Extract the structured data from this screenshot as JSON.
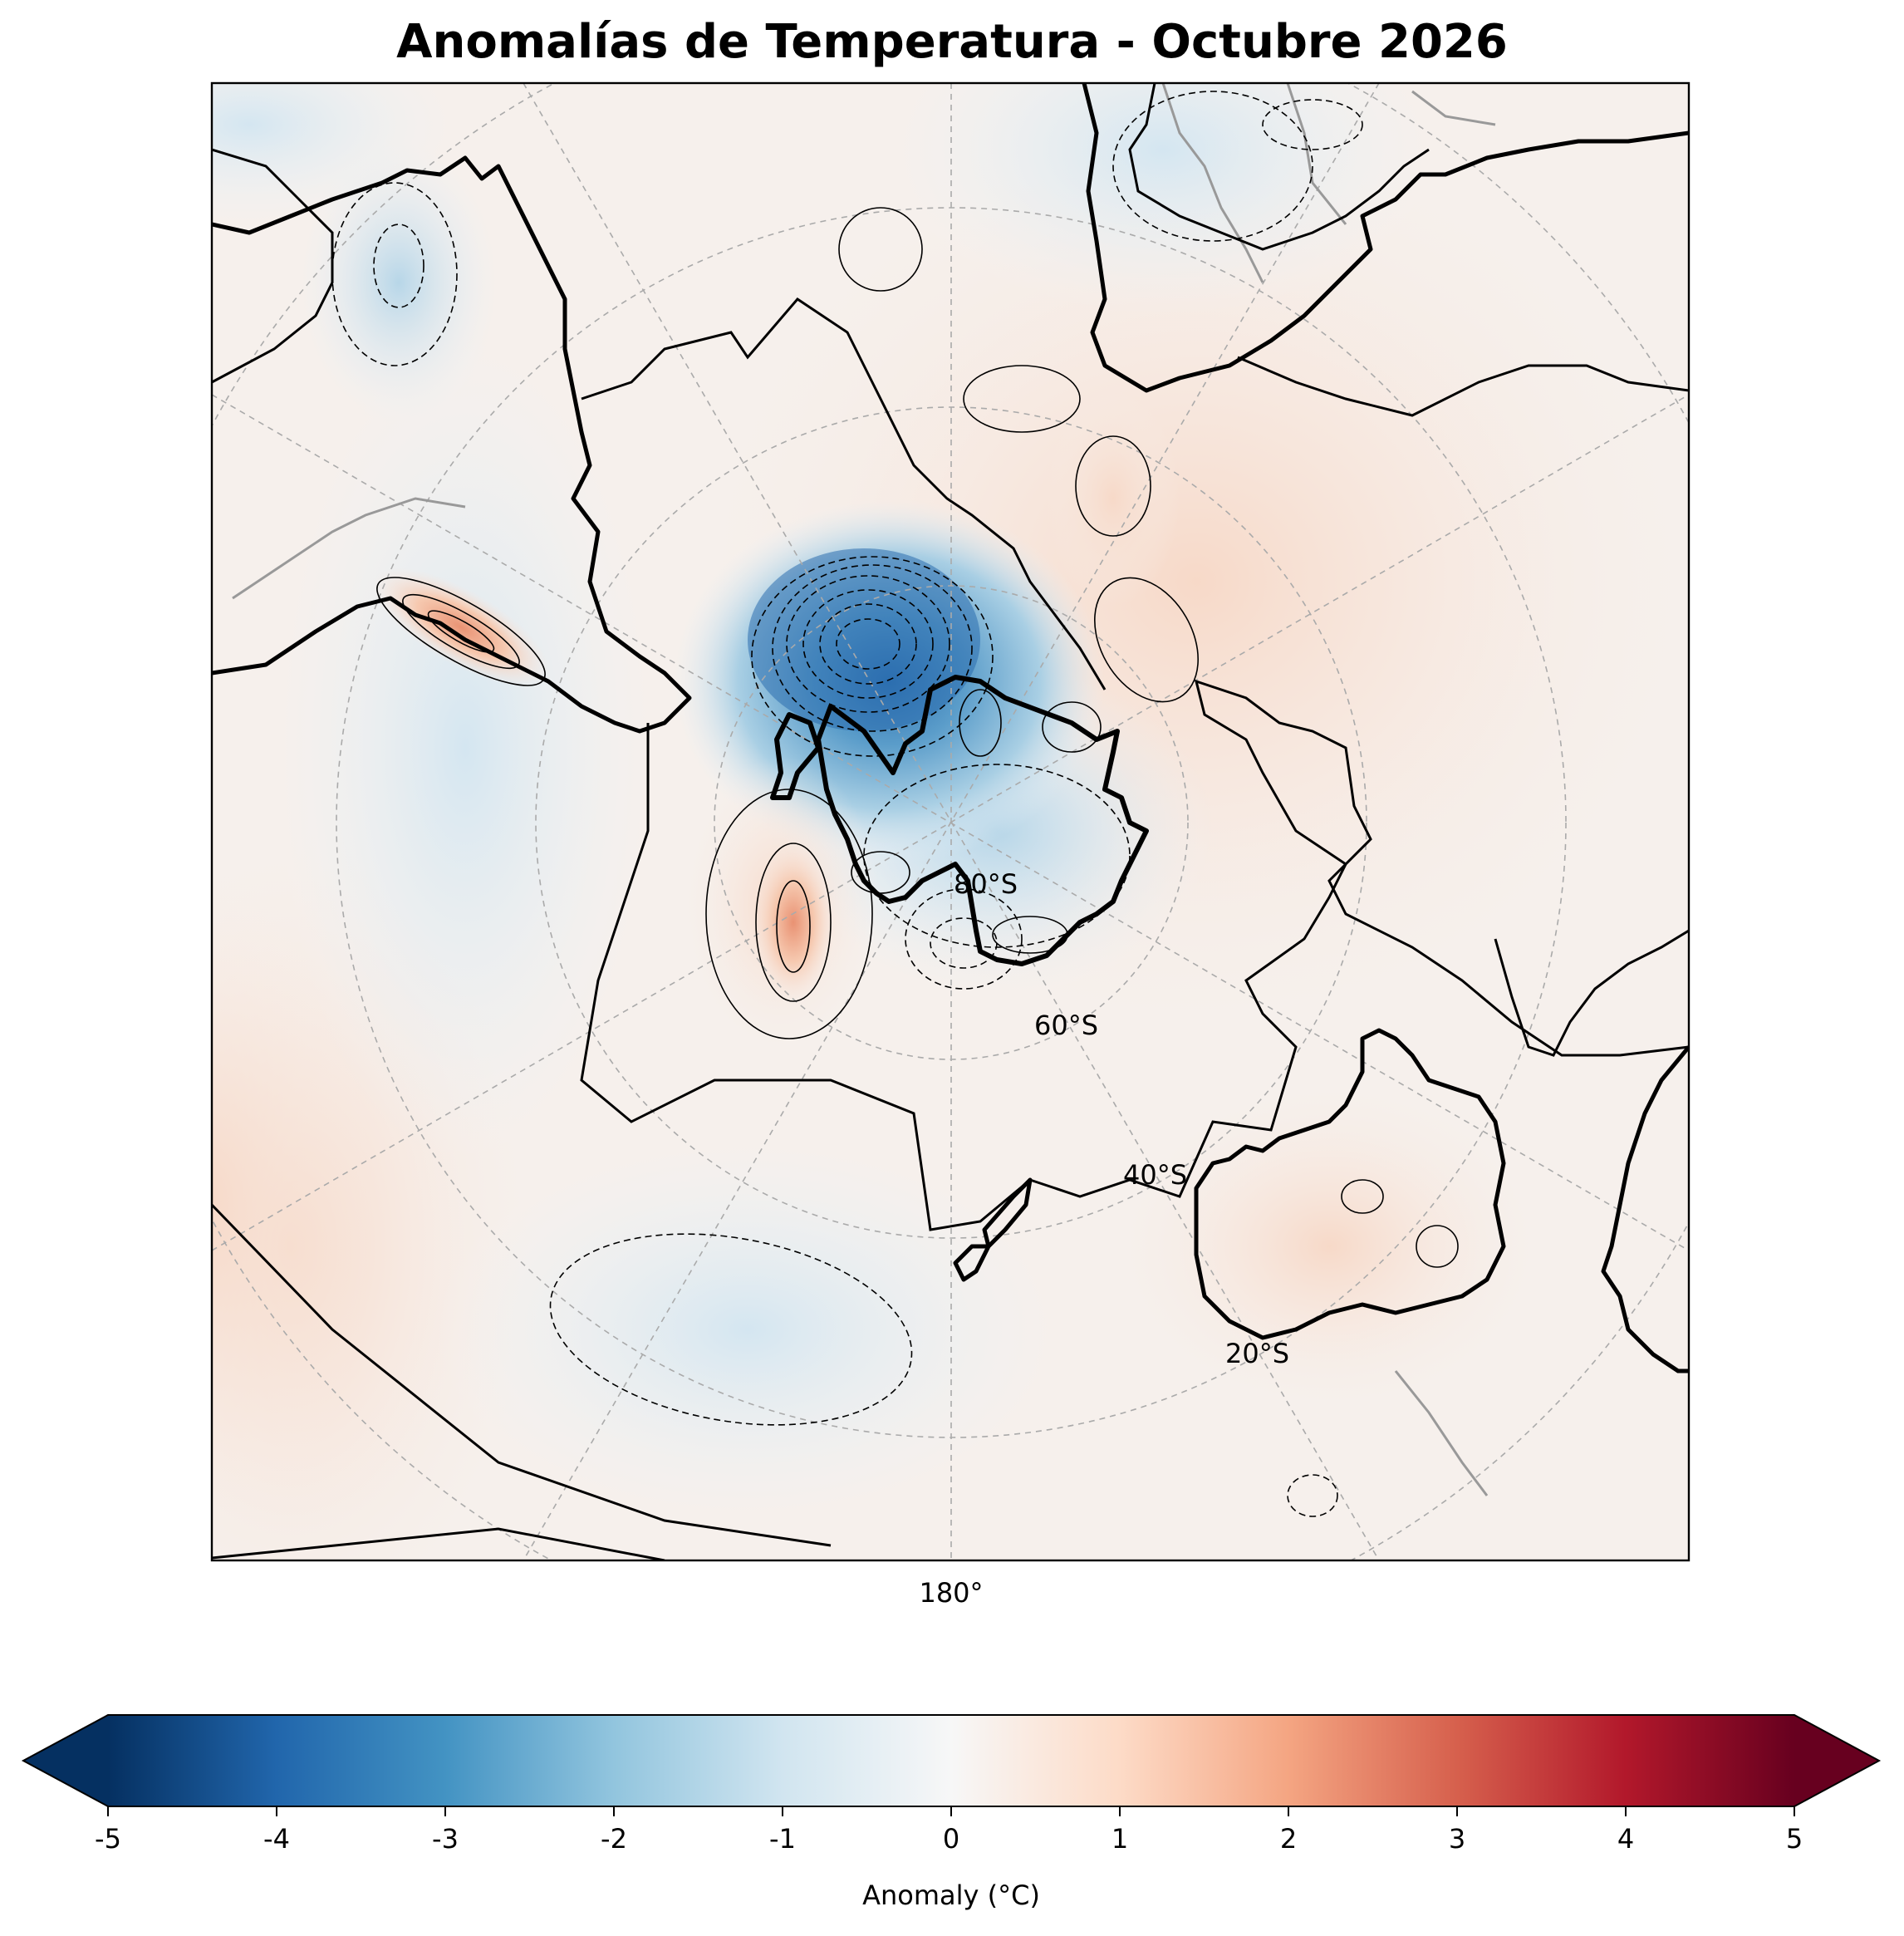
{
  "title": "Anomalías de Temperatura - Octubre 2026",
  "map": {
    "projection": "south-polar-stereographic",
    "lat_labels": [
      "80°S",
      "60°S",
      "40°S",
      "20°S"
    ],
    "lon_label": "180°"
  },
  "colorbar": {
    "label": "Anomaly (°C)",
    "ticks": [
      "-5",
      "-4",
      "-3",
      "-2",
      "-1",
      "0",
      "1",
      "2",
      "3",
      "4",
      "5"
    ],
    "colormap": "RdBu_r",
    "extend": "both",
    "range": [
      -5,
      5
    ]
  },
  "colors": {
    "cold_max": "#053061",
    "cold": "#2166ac",
    "cool": "#92c5de",
    "neutral": "#f7f7f7",
    "warm": "#f4a582",
    "hot": "#b2182b",
    "hot_max": "#67001f"
  }
}
